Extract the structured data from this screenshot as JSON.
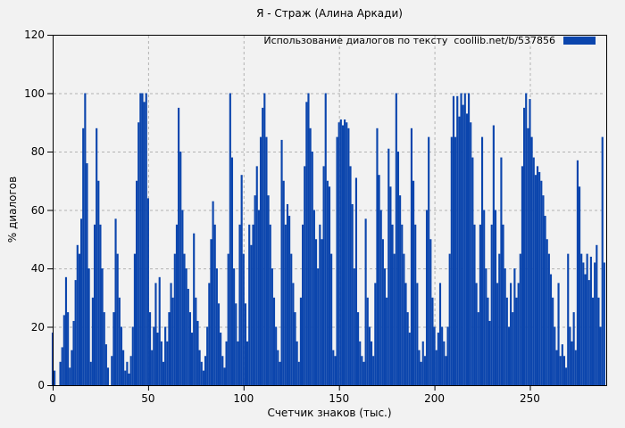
{
  "chart_data": {
    "type": "bar",
    "title": "Я - Страж (Алина Аркади)",
    "legend": "Использование диалогов по тексту  coollib.net/b/537856",
    "xlabel": "Счетчик знаков (тыс.)",
    "ylabel": "% диалогов",
    "xlim": [
      0,
      290
    ],
    "ylim": [
      0,
      120
    ],
    "xticks": [
      0,
      50,
      100,
      150,
      200,
      250
    ],
    "yticks": [
      0,
      20,
      40,
      60,
      80,
      100,
      120
    ],
    "grid": true,
    "legend_position": "top-right",
    "x_unit_step": 1,
    "values": [
      18,
      5,
      0,
      0,
      8,
      13,
      24,
      37,
      25,
      6,
      12,
      22,
      36,
      48,
      45,
      57,
      88,
      100,
      76,
      40,
      8,
      30,
      55,
      88,
      70,
      55,
      40,
      25,
      14,
      6,
      0,
      10,
      25,
      57,
      45,
      30,
      20,
      12,
      5,
      8,
      4,
      10,
      20,
      45,
      70,
      90,
      100,
      100,
      97,
      100,
      64,
      25,
      12,
      20,
      35,
      18,
      37,
      15,
      8,
      20,
      15,
      25,
      35,
      30,
      45,
      55,
      95,
      80,
      60,
      45,
      40,
      33,
      25,
      18,
      52,
      30,
      22,
      12,
      8,
      5,
      10,
      20,
      35,
      50,
      63,
      55,
      40,
      28,
      18,
      10,
      6,
      15,
      45,
      100,
      78,
      40,
      28,
      15,
      55,
      72,
      45,
      28,
      15,
      55,
      48,
      55,
      65,
      75,
      60,
      85,
      95,
      100,
      85,
      65,
      55,
      40,
      30,
      20,
      12,
      8,
      84,
      70,
      55,
      62,
      58,
      45,
      35,
      25,
      15,
      8,
      30,
      55,
      75,
      97,
      100,
      88,
      80,
      60,
      50,
      40,
      55,
      50,
      75,
      100,
      70,
      68,
      45,
      12,
      10,
      85,
      90,
      91,
      89,
      91,
      90,
      88,
      75,
      62,
      40,
      71,
      25,
      15,
      10,
      8,
      57,
      30,
      20,
      15,
      10,
      35,
      88,
      72,
      60,
      50,
      40,
      30,
      81,
      68,
      55,
      45,
      100,
      80,
      65,
      55,
      45,
      35,
      25,
      18,
      88,
      70,
      55,
      35,
      12,
      8,
      15,
      10,
      60,
      85,
      50,
      30,
      20,
      12,
      18,
      35,
      20,
      15,
      10,
      20,
      45,
      85,
      99,
      85,
      99,
      92,
      100,
      96,
      100,
      93,
      100,
      90,
      78,
      55,
      35,
      25,
      55,
      85,
      60,
      40,
      30,
      22,
      55,
      89,
      60,
      35,
      45,
      78,
      55,
      40,
      30,
      20,
      35,
      25,
      40,
      30,
      35,
      45,
      75,
      95,
      100,
      88,
      98,
      85,
      78,
      72,
      75,
      73,
      70,
      65,
      58,
      50,
      45,
      38,
      30,
      20,
      12,
      35,
      10,
      14,
      10,
      6,
      45,
      20,
      15,
      25,
      12,
      77,
      68,
      45,
      42,
      38,
      45,
      36,
      44,
      30,
      42,
      48,
      30,
      20,
      85,
      42
    ],
    "colors": {
      "bar": "#0b45ad",
      "background": "#f2f2f2",
      "grid": "#b3b3b3",
      "border": "#000000",
      "text": "#000000"
    }
  }
}
